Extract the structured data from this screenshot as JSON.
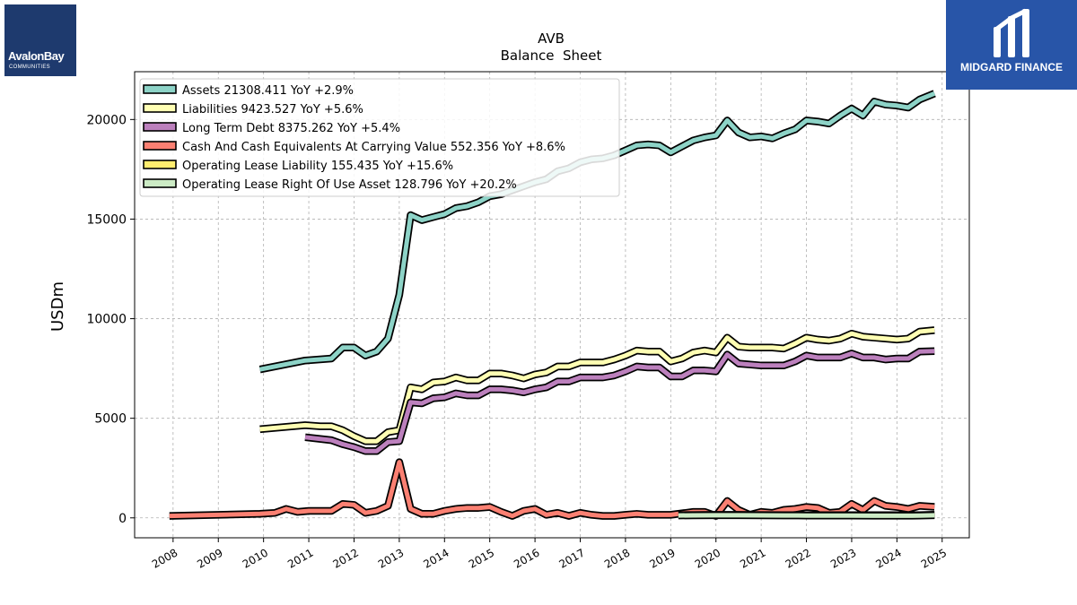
{
  "logos": {
    "left_name": "AvalonBay",
    "left_sub": "COMMUNITIES",
    "right_name": "MIDGARD FINANCE"
  },
  "chart_data": {
    "type": "line",
    "title": "AVB",
    "subtitle": "Balance  Sheet",
    "xlabel": "",
    "ylabel": "USDm",
    "xlim": [
      2007.15,
      2025.6
    ],
    "ylim": [
      -1000,
      22400
    ],
    "x_ticks": [
      "2008",
      "2009",
      "2010",
      "2011",
      "2012",
      "2013",
      "2014",
      "2015",
      "2016",
      "2017",
      "2018",
      "2019",
      "2020",
      "2021",
      "2022",
      "2023",
      "2024",
      "2025"
    ],
    "y_ticks": [
      0,
      5000,
      10000,
      15000,
      20000
    ],
    "y_tick_labels": [
      "0",
      "5000",
      "10000",
      "15000",
      "20000"
    ],
    "grid": true,
    "legend_position": "top-left",
    "series": [
      {
        "name": "Assets",
        "legend": "Assets  21308.411 YoY +2.9%",
        "color": "#8dd3c7",
        "points": [
          [
            2009.92,
            7450
          ],
          [
            2010.92,
            7900
          ],
          [
            2011.5,
            8000
          ],
          [
            2011.75,
            8550
          ],
          [
            2012.0,
            8550
          ],
          [
            2012.25,
            8150
          ],
          [
            2012.5,
            8350
          ],
          [
            2012.75,
            9000
          ],
          [
            2013.0,
            11200
          ],
          [
            2013.25,
            15200
          ],
          [
            2013.5,
            14950
          ],
          [
            2013.75,
            15100
          ],
          [
            2014.0,
            15250
          ],
          [
            2014.25,
            15550
          ],
          [
            2014.5,
            15650
          ],
          [
            2014.75,
            15850
          ],
          [
            2015.0,
            16150
          ],
          [
            2015.25,
            16250
          ],
          [
            2015.5,
            16450
          ],
          [
            2015.75,
            16650
          ],
          [
            2016.0,
            16850
          ],
          [
            2016.25,
            17000
          ],
          [
            2016.5,
            17400
          ],
          [
            2016.75,
            17550
          ],
          [
            2017.0,
            17850
          ],
          [
            2017.25,
            18000
          ],
          [
            2017.5,
            18050
          ],
          [
            2017.75,
            18200
          ],
          [
            2018.0,
            18450
          ],
          [
            2018.25,
            18700
          ],
          [
            2018.5,
            18750
          ],
          [
            2018.75,
            18700
          ],
          [
            2019.0,
            18350
          ],
          [
            2019.25,
            18650
          ],
          [
            2019.5,
            18950
          ],
          [
            2019.75,
            19100
          ],
          [
            2020.0,
            19200
          ],
          [
            2020.25,
            19950
          ],
          [
            2020.5,
            19350
          ],
          [
            2020.75,
            19100
          ],
          [
            2021.0,
            19150
          ],
          [
            2021.25,
            19050
          ],
          [
            2021.5,
            19300
          ],
          [
            2021.75,
            19500
          ],
          [
            2022.0,
            19950
          ],
          [
            2022.25,
            19900
          ],
          [
            2022.5,
            19800
          ],
          [
            2022.75,
            20200
          ],
          [
            2023.0,
            20550
          ],
          [
            2023.25,
            20200
          ],
          [
            2023.5,
            20900
          ],
          [
            2023.75,
            20750
          ],
          [
            2024.0,
            20700
          ],
          [
            2024.25,
            20600
          ],
          [
            2024.5,
            21000
          ],
          [
            2024.83,
            21308
          ]
        ]
      },
      {
        "name": "Liabilities",
        "legend": "Liabilities  9423.527 YoY +5.6%",
        "color": "#ffffb3",
        "points": [
          [
            2009.92,
            4450
          ],
          [
            2010.92,
            4650
          ],
          [
            2011.25,
            4600
          ],
          [
            2011.5,
            4600
          ],
          [
            2011.75,
            4400
          ],
          [
            2012.0,
            4100
          ],
          [
            2012.25,
            3850
          ],
          [
            2012.5,
            3850
          ],
          [
            2012.75,
            4300
          ],
          [
            2013.0,
            4400
          ],
          [
            2013.25,
            6550
          ],
          [
            2013.5,
            6450
          ],
          [
            2013.75,
            6800
          ],
          [
            2014.0,
            6850
          ],
          [
            2014.25,
            7050
          ],
          [
            2014.5,
            6900
          ],
          [
            2014.75,
            6900
          ],
          [
            2015.0,
            7250
          ],
          [
            2015.25,
            7250
          ],
          [
            2015.5,
            7150
          ],
          [
            2015.75,
            7000
          ],
          [
            2016.0,
            7200
          ],
          [
            2016.25,
            7300
          ],
          [
            2016.5,
            7600
          ],
          [
            2016.75,
            7600
          ],
          [
            2017.0,
            7800
          ],
          [
            2017.25,
            7800
          ],
          [
            2017.5,
            7800
          ],
          [
            2017.75,
            7950
          ],
          [
            2018.0,
            8150
          ],
          [
            2018.25,
            8400
          ],
          [
            2018.5,
            8350
          ],
          [
            2018.75,
            8350
          ],
          [
            2019.0,
            7850
          ],
          [
            2019.25,
            8000
          ],
          [
            2019.5,
            8300
          ],
          [
            2019.75,
            8400
          ],
          [
            2020.0,
            8300
          ],
          [
            2020.25,
            9050
          ],
          [
            2020.5,
            8600
          ],
          [
            2020.75,
            8550
          ],
          [
            2021.0,
            8550
          ],
          [
            2021.25,
            8550
          ],
          [
            2021.5,
            8500
          ],
          [
            2021.75,
            8750
          ],
          [
            2022.0,
            9050
          ],
          [
            2022.25,
            8950
          ],
          [
            2022.5,
            8900
          ],
          [
            2022.75,
            9000
          ],
          [
            2023.0,
            9250
          ],
          [
            2023.25,
            9100
          ],
          [
            2023.5,
            9050
          ],
          [
            2023.75,
            9000
          ],
          [
            2024.0,
            8950
          ],
          [
            2024.25,
            9000
          ],
          [
            2024.5,
            9350
          ],
          [
            2024.83,
            9424
          ]
        ]
      },
      {
        "name": "Long Term Debt",
        "legend": "Long Term Debt  8375.262 YoY +5.4%",
        "color": "#bc80bd",
        "points": [
          [
            2010.92,
            4050
          ],
          [
            2011.5,
            3900
          ],
          [
            2011.75,
            3700
          ],
          [
            2012.0,
            3550
          ],
          [
            2012.25,
            3350
          ],
          [
            2012.5,
            3350
          ],
          [
            2012.75,
            3800
          ],
          [
            2013.0,
            3850
          ],
          [
            2013.25,
            5800
          ],
          [
            2013.5,
            5750
          ],
          [
            2013.75,
            6000
          ],
          [
            2014.0,
            6050
          ],
          [
            2014.25,
            6250
          ],
          [
            2014.5,
            6150
          ],
          [
            2014.75,
            6150
          ],
          [
            2015.0,
            6450
          ],
          [
            2015.25,
            6450
          ],
          [
            2015.5,
            6400
          ],
          [
            2015.75,
            6300
          ],
          [
            2016.0,
            6450
          ],
          [
            2016.25,
            6550
          ],
          [
            2016.5,
            6850
          ],
          [
            2016.75,
            6850
          ],
          [
            2017.0,
            7050
          ],
          [
            2017.25,
            7050
          ],
          [
            2017.5,
            7050
          ],
          [
            2017.75,
            7150
          ],
          [
            2018.0,
            7350
          ],
          [
            2018.25,
            7600
          ],
          [
            2018.5,
            7550
          ],
          [
            2018.75,
            7550
          ],
          [
            2019.0,
            7100
          ],
          [
            2019.25,
            7100
          ],
          [
            2019.5,
            7400
          ],
          [
            2019.75,
            7400
          ],
          [
            2020.0,
            7350
          ],
          [
            2020.25,
            8200
          ],
          [
            2020.5,
            7750
          ],
          [
            2020.75,
            7700
          ],
          [
            2021.0,
            7650
          ],
          [
            2021.25,
            7650
          ],
          [
            2021.5,
            7650
          ],
          [
            2021.75,
            7850
          ],
          [
            2022.0,
            8150
          ],
          [
            2022.25,
            8050
          ],
          [
            2022.5,
            8050
          ],
          [
            2022.75,
            8050
          ],
          [
            2023.0,
            8250
          ],
          [
            2023.25,
            8050
          ],
          [
            2023.5,
            8050
          ],
          [
            2023.75,
            7950
          ],
          [
            2024.0,
            8000
          ],
          [
            2024.25,
            8000
          ],
          [
            2024.5,
            8350
          ],
          [
            2024.83,
            8375
          ]
        ]
      },
      {
        "name": "Cash And Cash Equivalents At Carrying Value",
        "legend": "Cash And Cash Equivalents At Carrying Value  552.356 YoY +8.6%",
        "color": "#fb8072",
        "points": [
          [
            2007.92,
            100
          ],
          [
            2009.92,
            200
          ],
          [
            2010.25,
            250
          ],
          [
            2010.5,
            450
          ],
          [
            2010.75,
            300
          ],
          [
            2011.0,
            350
          ],
          [
            2011.5,
            350
          ],
          [
            2011.75,
            700
          ],
          [
            2012.0,
            650
          ],
          [
            2012.25,
            250
          ],
          [
            2012.5,
            350
          ],
          [
            2012.75,
            600
          ],
          [
            2013.0,
            2800
          ],
          [
            2013.25,
            450
          ],
          [
            2013.5,
            200
          ],
          [
            2013.75,
            200
          ],
          [
            2014.0,
            350
          ],
          [
            2014.25,
            450
          ],
          [
            2014.5,
            500
          ],
          [
            2014.75,
            500
          ],
          [
            2015.0,
            550
          ],
          [
            2015.25,
            300
          ],
          [
            2015.5,
            100
          ],
          [
            2015.75,
            350
          ],
          [
            2016.0,
            450
          ],
          [
            2016.25,
            150
          ],
          [
            2016.5,
            250
          ],
          [
            2016.75,
            100
          ],
          [
            2017.0,
            250
          ],
          [
            2017.25,
            150
          ],
          [
            2017.5,
            100
          ],
          [
            2017.75,
            100
          ],
          [
            2018.0,
            150
          ],
          [
            2018.25,
            200
          ],
          [
            2018.5,
            150
          ],
          [
            2018.75,
            150
          ],
          [
            2019.0,
            150
          ],
          [
            2019.5,
            300
          ],
          [
            2019.75,
            300
          ],
          [
            2020.0,
            100
          ],
          [
            2020.25,
            850
          ],
          [
            2020.5,
            400
          ],
          [
            2020.75,
            150
          ],
          [
            2021.0,
            300
          ],
          [
            2021.25,
            250
          ],
          [
            2021.5,
            400
          ],
          [
            2021.75,
            450
          ],
          [
            2022.0,
            550
          ],
          [
            2022.25,
            500
          ],
          [
            2022.5,
            250
          ],
          [
            2022.75,
            300
          ],
          [
            2023.0,
            700
          ],
          [
            2023.25,
            400
          ],
          [
            2023.5,
            850
          ],
          [
            2023.75,
            600
          ],
          [
            2024.0,
            550
          ],
          [
            2024.25,
            450
          ],
          [
            2024.5,
            600
          ],
          [
            2024.83,
            552
          ]
        ]
      },
      {
        "name": "Operating Lease Liability",
        "legend": "Operating Lease Liability  155.435 YoY +15.6%",
        "color": "#ffed6f",
        "points": [
          [
            2019.17,
            140
          ],
          [
            2019.5,
            145
          ],
          [
            2020.0,
            150
          ],
          [
            2020.5,
            150
          ],
          [
            2021.0,
            145
          ],
          [
            2021.5,
            140
          ],
          [
            2022.0,
            140
          ],
          [
            2022.5,
            135
          ],
          [
            2023.0,
            135
          ],
          [
            2023.5,
            134
          ],
          [
            2024.0,
            134
          ],
          [
            2024.5,
            140
          ],
          [
            2024.83,
            155
          ]
        ]
      },
      {
        "name": "Operating Lease Right Of Use Asset",
        "legend": "Operating Lease Right Of Use Asset  128.796 YoY +20.2%",
        "color": "#ccebc5",
        "points": [
          [
            2019.17,
            120
          ],
          [
            2019.5,
            125
          ],
          [
            2020.0,
            130
          ],
          [
            2020.5,
            130
          ],
          [
            2021.0,
            125
          ],
          [
            2021.5,
            120
          ],
          [
            2022.0,
            118
          ],
          [
            2022.5,
            112
          ],
          [
            2023.0,
            110
          ],
          [
            2023.5,
            108
          ],
          [
            2024.0,
            107
          ],
          [
            2024.5,
            110
          ],
          [
            2024.83,
            129
          ]
        ]
      }
    ]
  }
}
